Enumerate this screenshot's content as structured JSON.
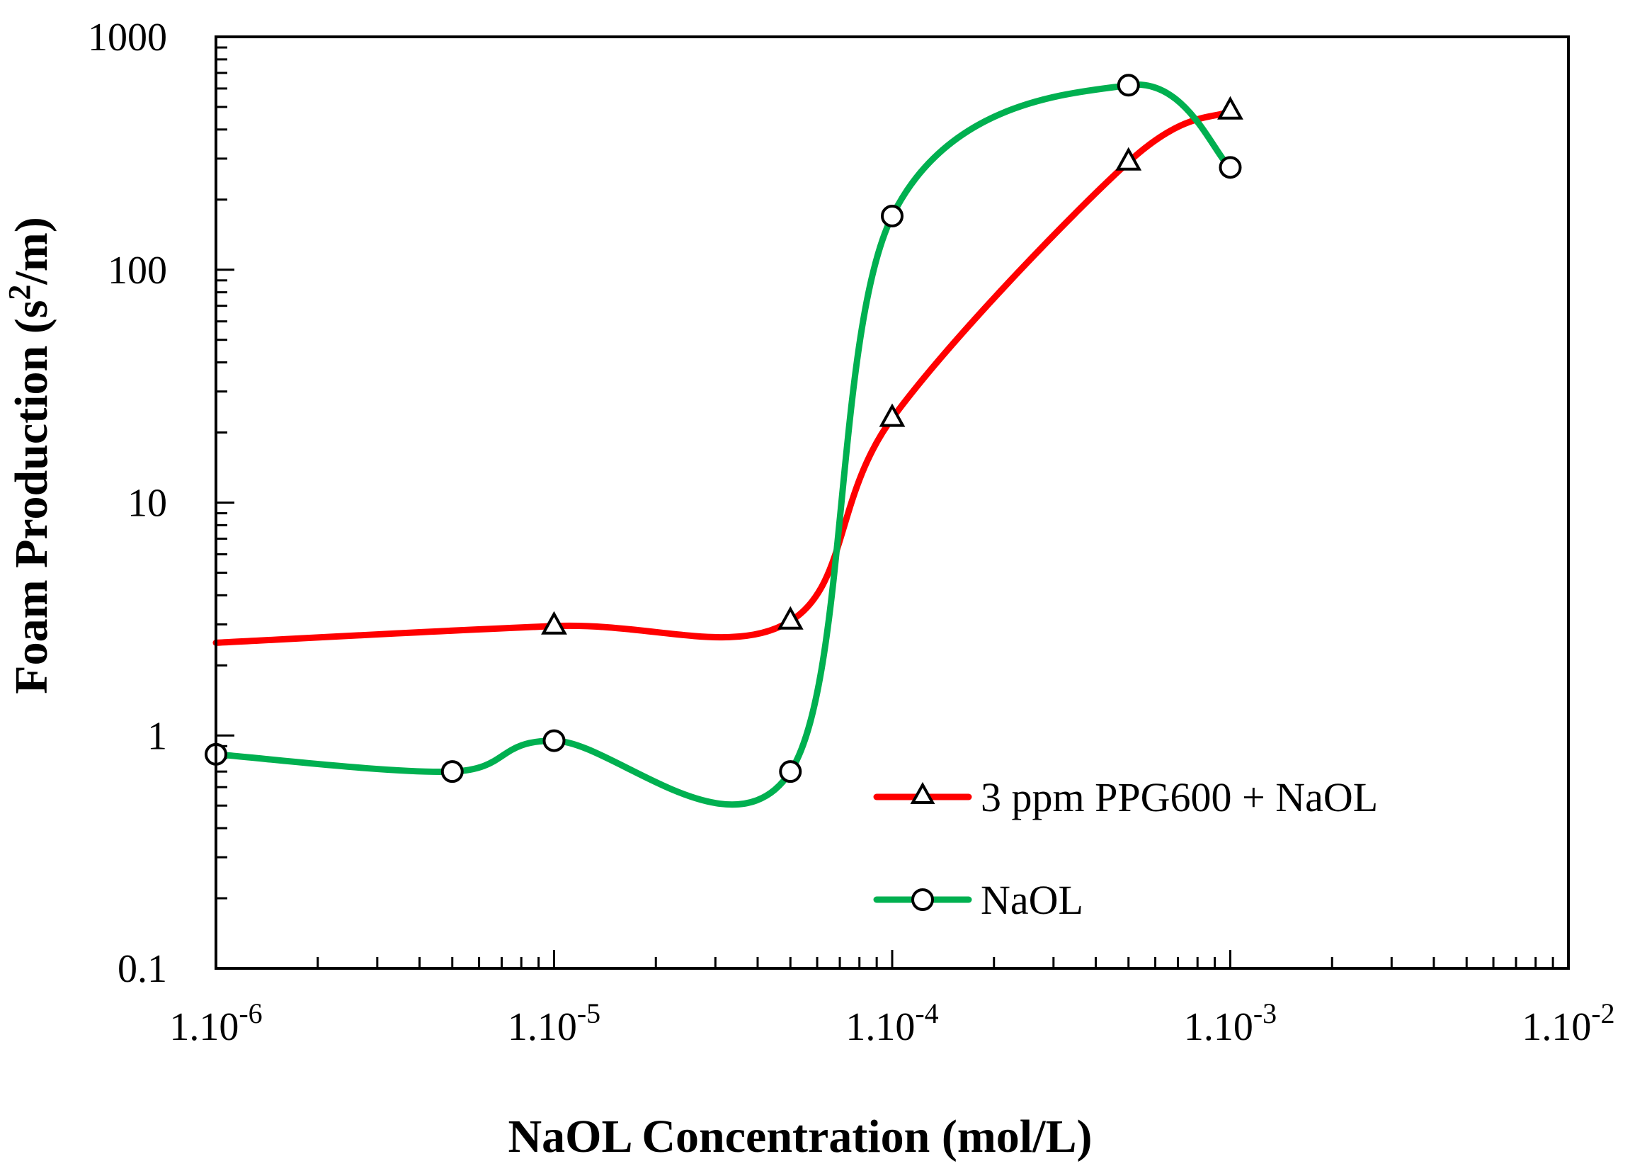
{
  "chart_data": {
    "type": "line",
    "title": "",
    "xlabel": "NaOL Concentration (mol/L)",
    "ylabel": {
      "prefix": "Foam Production (s",
      "sup": "2",
      "suffix": "/m)"
    },
    "xscale": "log",
    "yscale": "log",
    "xlim": [
      1e-06,
      0.01
    ],
    "ylim": [
      0.1,
      1000
    ],
    "x_ticks": [
      {
        "value": 1e-06,
        "base": "1.10",
        "exp": "-6"
      },
      {
        "value": 1e-05,
        "base": "1.10",
        "exp": "-5"
      },
      {
        "value": 0.0001,
        "base": "1.10",
        "exp": "-4"
      },
      {
        "value": 0.001,
        "base": "1.10",
        "exp": "-3"
      },
      {
        "value": 0.01,
        "base": "1.10",
        "exp": "-2"
      }
    ],
    "y_ticks": [
      {
        "value": 0.1,
        "label": "0.1"
      },
      {
        "value": 1,
        "label": "1"
      },
      {
        "value": 10,
        "label": "10"
      },
      {
        "value": 100,
        "label": "100"
      },
      {
        "value": 1000,
        "label": "1000"
      }
    ],
    "legend_position": "bottom-right",
    "series": [
      {
        "name": "3 ppm PPG600 + NaOL",
        "color": "#ff0000",
        "marker": "triangle",
        "curve_start": {
          "x": 1e-06,
          "y": 2.5
        },
        "points": [
          {
            "x": 1e-05,
            "y": 2.95
          },
          {
            "x": 5e-05,
            "y": 3.1
          },
          {
            "x": 0.0001,
            "y": 23
          },
          {
            "x": 0.0005,
            "y": 290
          },
          {
            "x": 0.001,
            "y": 480
          }
        ]
      },
      {
        "name": "NaOL",
        "color": "#00b050",
        "marker": "circle",
        "points": [
          {
            "x": 1e-06,
            "y": 0.83
          },
          {
            "x": 5e-06,
            "y": 0.7
          },
          {
            "x": 1e-05,
            "y": 0.95
          },
          {
            "x": 5e-05,
            "y": 0.7
          },
          {
            "x": 0.0001,
            "y": 170
          },
          {
            "x": 0.0005,
            "y": 620
          },
          {
            "x": 0.001,
            "y": 275
          }
        ]
      }
    ]
  }
}
